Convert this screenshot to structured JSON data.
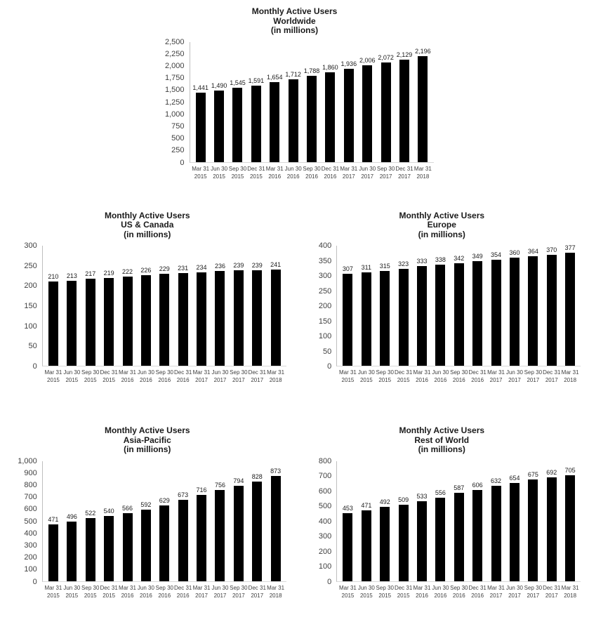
{
  "colors": {
    "bar": "#000000",
    "axis": "#bfbfbf",
    "baseline": "#d9d9d9",
    "text": "#404040"
  },
  "chart_data": [
    {
      "type": "bar",
      "title": "Monthly Active Users",
      "subtitle": "Worldwide",
      "units_label": "(in millions)",
      "categories": [
        [
          "Mar 31",
          "2015"
        ],
        [
          "Jun 30",
          "2015"
        ],
        [
          "Sep 30",
          "2015"
        ],
        [
          "Dec 31",
          "2015"
        ],
        [
          "Mar 31",
          "2016"
        ],
        [
          "Jun 30",
          "2016"
        ],
        [
          "Sep 30",
          "2016"
        ],
        [
          "Dec 31",
          "2016"
        ],
        [
          "Mar 31",
          "2017"
        ],
        [
          "Jun 30",
          "2017"
        ],
        [
          "Sep 30",
          "2017"
        ],
        [
          "Dec 31",
          "2017"
        ],
        [
          "Mar 31",
          "2018"
        ]
      ],
      "values": [
        1441,
        1490,
        1545,
        1591,
        1654,
        1712,
        1788,
        1860,
        1936,
        2006,
        2072,
        2129,
        2196
      ],
      "ylim": [
        0,
        2500
      ],
      "ytick_step": 250,
      "grid": false,
      "legend": false,
      "bar_color": "#000000"
    },
    {
      "type": "bar",
      "title": "Monthly Active Users",
      "subtitle": "US & Canada",
      "units_label": "(in millions)",
      "categories": [
        [
          "Mar 31",
          "2015"
        ],
        [
          "Jun 30",
          "2015"
        ],
        [
          "Sep 30",
          "2015"
        ],
        [
          "Dec 31",
          "2015"
        ],
        [
          "Mar 31",
          "2016"
        ],
        [
          "Jun 30",
          "2016"
        ],
        [
          "Sep 30",
          "2016"
        ],
        [
          "Dec 31",
          "2016"
        ],
        [
          "Mar 31",
          "2017"
        ],
        [
          "Jun 30",
          "2017"
        ],
        [
          "Sep 30",
          "2017"
        ],
        [
          "Dec 31",
          "2017"
        ],
        [
          "Mar 31",
          "2018"
        ]
      ],
      "values": [
        210,
        213,
        217,
        219,
        222,
        226,
        229,
        231,
        234,
        236,
        239,
        239,
        241
      ],
      "ylim": [
        0,
        300
      ],
      "ytick_step": 50,
      "grid": false,
      "legend": false,
      "bar_color": "#000000"
    },
    {
      "type": "bar",
      "title": "Monthly Active Users",
      "subtitle": "Europe",
      "units_label": "(in millions)",
      "categories": [
        [
          "Mar 31",
          "2015"
        ],
        [
          "Jun 30",
          "2015"
        ],
        [
          "Sep 30",
          "2015"
        ],
        [
          "Dec 31",
          "2015"
        ],
        [
          "Mar 31",
          "2016"
        ],
        [
          "Jun 30",
          "2016"
        ],
        [
          "Sep 30",
          "2016"
        ],
        [
          "Dec 31",
          "2016"
        ],
        [
          "Mar 31",
          "2017"
        ],
        [
          "Jun 30",
          "2017"
        ],
        [
          "Sep 30",
          "2017"
        ],
        [
          "Dec 31",
          "2017"
        ],
        [
          "Mar 31",
          "2018"
        ]
      ],
      "values": [
        307,
        311,
        315,
        323,
        333,
        338,
        342,
        349,
        354,
        360,
        364,
        370,
        377
      ],
      "ylim": [
        0,
        400
      ],
      "ytick_step": 50,
      "grid": false,
      "legend": false,
      "bar_color": "#000000"
    },
    {
      "type": "bar",
      "title": "Monthly Active Users",
      "subtitle": "Asia-Pacific",
      "units_label": "(in millions)",
      "categories": [
        [
          "Mar 31",
          "2015"
        ],
        [
          "Jun 30",
          "2015"
        ],
        [
          "Sep 30",
          "2015"
        ],
        [
          "Dec 31",
          "2015"
        ],
        [
          "Mar 31",
          "2016"
        ],
        [
          "Jun 30",
          "2016"
        ],
        [
          "Sep 30",
          "2016"
        ],
        [
          "Dec 31",
          "2016"
        ],
        [
          "Mar 31",
          "2017"
        ],
        [
          "Jun 30",
          "2017"
        ],
        [
          "Sep 30",
          "2017"
        ],
        [
          "Dec 31",
          "2017"
        ],
        [
          "Mar 31",
          "2018"
        ]
      ],
      "values": [
        471,
        496,
        522,
        540,
        566,
        592,
        629,
        673,
        716,
        756,
        794,
        828,
        873
      ],
      "ylim": [
        0,
        1000
      ],
      "ytick_step": 100,
      "grid": false,
      "legend": false,
      "bar_color": "#000000"
    },
    {
      "type": "bar",
      "title": "Monthly Active Users",
      "subtitle": "Rest of World",
      "units_label": "(in millions)",
      "categories": [
        [
          "Mar 31",
          "2015"
        ],
        [
          "Jun 30",
          "2015"
        ],
        [
          "Sep 30",
          "2015"
        ],
        [
          "Dec 31",
          "2015"
        ],
        [
          "Mar 31",
          "2016"
        ],
        [
          "Jun 30",
          "2016"
        ],
        [
          "Sep 30",
          "2016"
        ],
        [
          "Dec 31",
          "2016"
        ],
        [
          "Mar 31",
          "2017"
        ],
        [
          "Jun 30",
          "2017"
        ],
        [
          "Sep 30",
          "2017"
        ],
        [
          "Dec 31",
          "2017"
        ],
        [
          "Mar 31",
          "2018"
        ]
      ],
      "values": [
        453,
        471,
        492,
        509,
        533,
        556,
        587,
        606,
        632,
        654,
        675,
        692,
        705
      ],
      "ylim": [
        0,
        800
      ],
      "ytick_step": 100,
      "grid": false,
      "legend": false,
      "bar_color": "#000000"
    }
  ]
}
